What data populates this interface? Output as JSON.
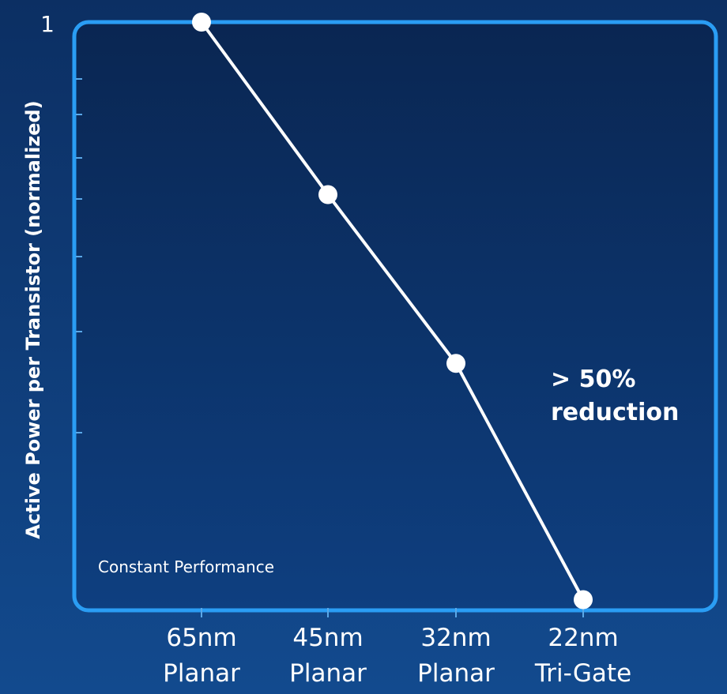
{
  "chart_data": {
    "type": "line",
    "ylabel": "Active Power per Transistor (normalized)",
    "y_top_tick_label": "1",
    "ylim": [
      0.2,
      1
    ],
    "categories": [
      {
        "line1": "65nm",
        "line2": "Planar"
      },
      {
        "line1": "45nm",
        "line2": "Planar"
      },
      {
        "line1": "32nm",
        "line2": "Planar"
      },
      {
        "line1": "22nm",
        "line2": "Tri-Gate"
      }
    ],
    "values": [
      1.0,
      0.77,
      0.545,
      0.23
    ],
    "annotation": {
      "line1": "> 50%",
      "line2": "reduction"
    },
    "note": "Constant Performance",
    "grid": false,
    "colors": {
      "background_outer": "#0f3d7a",
      "plot_fill_top": "#0a2652",
      "plot_fill_bottom": "#0d3a78",
      "plot_border": "#2a9df4",
      "line": "#ffffff",
      "marker": "#ffffff",
      "text": "#ffffff"
    }
  }
}
